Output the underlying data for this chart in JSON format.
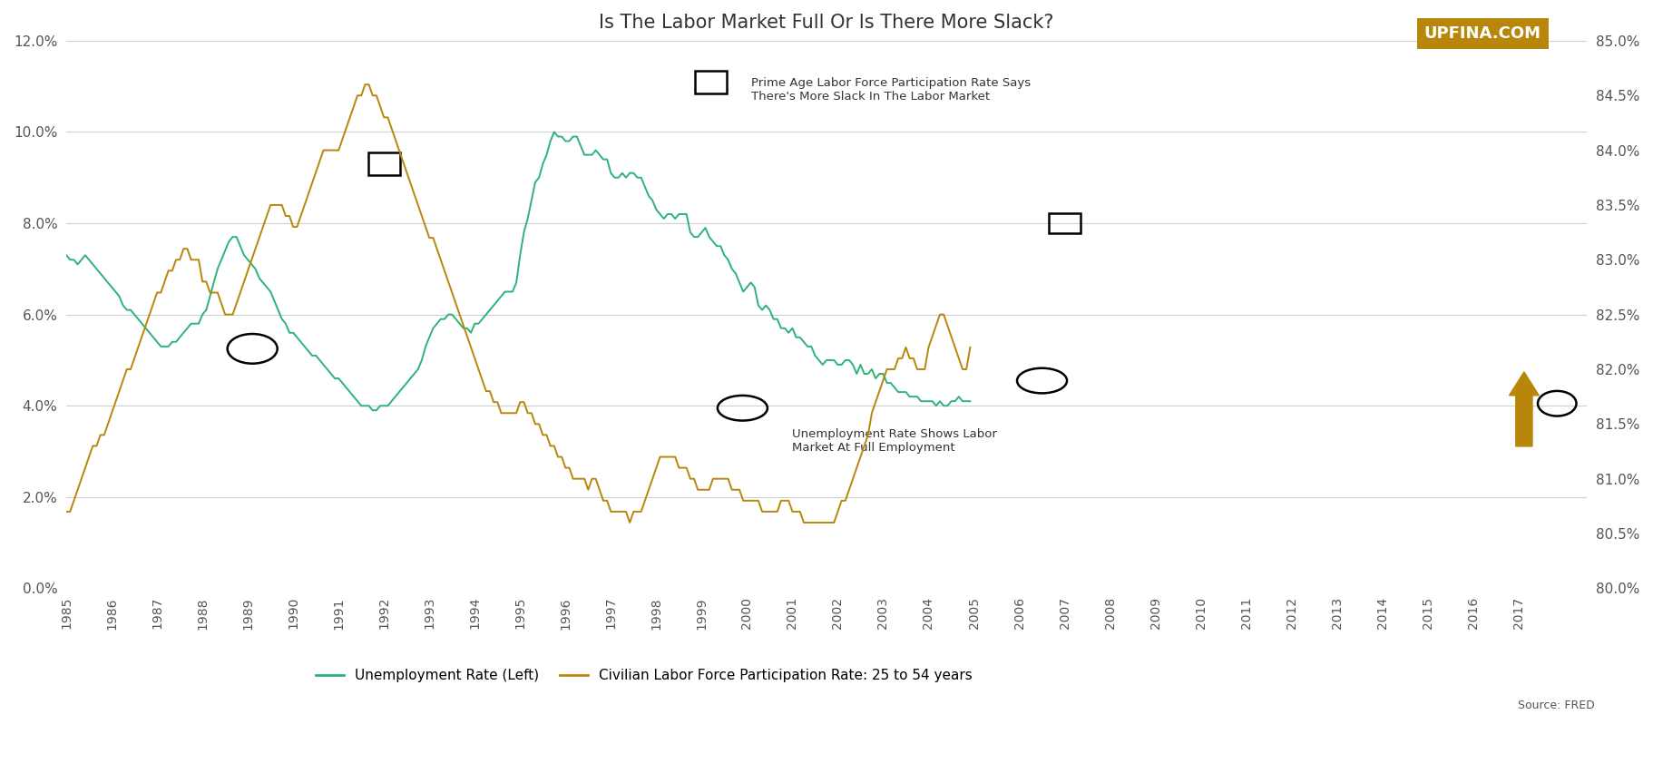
{
  "title": "Is The Labor Market Full Or Is There More Slack?",
  "watermark": "UPFINA.COM",
  "source_text": "Source: FRED",
  "legend_items": [
    {
      "label": "Unemployment Rate (Left)",
      "color": "#2db37a"
    },
    {
      "label": "Civilian Labor Force Participation Rate: 25 to 54 years",
      "color": "#b8860b"
    }
  ],
  "ylim_left": [
    0.0,
    12.0
  ],
  "ylim_right": [
    80.0,
    85.0
  ],
  "yticks_left": [
    0.0,
    2.0,
    4.0,
    6.0,
    8.0,
    10.0,
    12.0
  ],
  "yticks_right": [
    80.0,
    80.5,
    81.0,
    81.5,
    82.0,
    82.5,
    83.0,
    83.5,
    84.0,
    84.5,
    85.0
  ],
  "annotation1_text": "Prime Age Labor Force Participation Rate Says\nThere's More Slack In The Labor Market",
  "annotation2_text": "Unemployment Rate Shows Labor\nMarket At Full Employment",
  "unemployment_color": "#2db37a",
  "participation_color": "#b8860b",
  "background_color": "#ffffff",
  "grid_color": "#d0d0d0",
  "arrow_color": "#b8860b",
  "watermark_bg": "#b8860b",
  "watermark_text_color": "#ffffff",
  "x_start_year": 1985,
  "xtick_years": [
    1985,
    1986,
    1987,
    1988,
    1989,
    1990,
    1991,
    1992,
    1993,
    1994,
    1995,
    1996,
    1997,
    1998,
    1999,
    2000,
    2001,
    2002,
    2003,
    2004,
    2005,
    2006,
    2007,
    2008,
    2009,
    2010,
    2011,
    2012,
    2013,
    2014,
    2015,
    2016,
    2017
  ],
  "unemployment_data": [
    7.3,
    7.2,
    7.2,
    7.1,
    7.2,
    7.3,
    7.2,
    7.1,
    7.0,
    6.9,
    6.8,
    6.7,
    6.6,
    6.5,
    6.4,
    6.2,
    6.1,
    6.1,
    6.0,
    5.9,
    5.8,
    5.7,
    5.6,
    5.5,
    5.4,
    5.3,
    5.3,
    5.3,
    5.4,
    5.4,
    5.5,
    5.6,
    5.7,
    5.8,
    5.8,
    5.8,
    6.0,
    6.1,
    6.4,
    6.7,
    7.0,
    7.2,
    7.4,
    7.6,
    7.7,
    7.7,
    7.5,
    7.3,
    7.2,
    7.1,
    7.0,
    6.8,
    6.7,
    6.6,
    6.5,
    6.3,
    6.1,
    5.9,
    5.8,
    5.6,
    5.6,
    5.5,
    5.4,
    5.3,
    5.2,
    5.1,
    5.1,
    5.0,
    4.9,
    4.8,
    4.7,
    4.6,
    4.6,
    4.5,
    4.4,
    4.3,
    4.2,
    4.1,
    4.0,
    4.0,
    4.0,
    3.9,
    3.9,
    4.0,
    4.0,
    4.0,
    4.1,
    4.2,
    4.3,
    4.4,
    4.5,
    4.6,
    4.7,
    4.8,
    5.0,
    5.3,
    5.5,
    5.7,
    5.8,
    5.9,
    5.9,
    6.0,
    6.0,
    5.9,
    5.8,
    5.7,
    5.7,
    5.6,
    5.8,
    5.8,
    5.9,
    6.0,
    6.1,
    6.2,
    6.3,
    6.4,
    6.5,
    6.5,
    6.5,
    6.7,
    7.3,
    7.8,
    8.1,
    8.5,
    8.9,
    9.0,
    9.3,
    9.5,
    9.8,
    10.0,
    9.9,
    9.9,
    9.8,
    9.8,
    9.9,
    9.9,
    9.7,
    9.5,
    9.5,
    9.5,
    9.6,
    9.5,
    9.4,
    9.4,
    9.1,
    9.0,
    9.0,
    9.1,
    9.0,
    9.1,
    9.1,
    9.0,
    9.0,
    8.8,
    8.6,
    8.5,
    8.3,
    8.2,
    8.1,
    8.2,
    8.2,
    8.1,
    8.2,
    8.2,
    8.2,
    7.8,
    7.7,
    7.7,
    7.8,
    7.9,
    7.7,
    7.6,
    7.5,
    7.5,
    7.3,
    7.2,
    7.0,
    6.9,
    6.7,
    6.5,
    6.6,
    6.7,
    6.6,
    6.2,
    6.1,
    6.2,
    6.1,
    5.9,
    5.9,
    5.7,
    5.7,
    5.6,
    5.7,
    5.5,
    5.5,
    5.4,
    5.3,
    5.3,
    5.1,
    5.0,
    4.9,
    5.0,
    5.0,
    5.0,
    4.9,
    4.9,
    5.0,
    5.0,
    4.9,
    4.7,
    4.9,
    4.7,
    4.7,
    4.8,
    4.6,
    4.7,
    4.7,
    4.5,
    4.5,
    4.4,
    4.3,
    4.3,
    4.3,
    4.2,
    4.2,
    4.2,
    4.1,
    4.1,
    4.1,
    4.1,
    4.0,
    4.1,
    4.0,
    4.0,
    4.1,
    4.1,
    4.2,
    4.1,
    4.1,
    4.1
  ],
  "participation_data": [
    80.7,
    80.7,
    80.8,
    80.9,
    81.0,
    81.1,
    81.2,
    81.3,
    81.3,
    81.4,
    81.4,
    81.5,
    81.6,
    81.7,
    81.8,
    81.9,
    82.0,
    82.0,
    82.1,
    82.2,
    82.3,
    82.4,
    82.5,
    82.6,
    82.7,
    82.7,
    82.8,
    82.9,
    82.9,
    83.0,
    83.0,
    83.1,
    83.1,
    83.0,
    83.0,
    83.0,
    82.8,
    82.8,
    82.7,
    82.7,
    82.7,
    82.6,
    82.5,
    82.5,
    82.5,
    82.6,
    82.7,
    82.8,
    82.9,
    83.0,
    83.1,
    83.2,
    83.3,
    83.4,
    83.5,
    83.5,
    83.5,
    83.5,
    83.4,
    83.4,
    83.3,
    83.3,
    83.4,
    83.5,
    83.6,
    83.7,
    83.8,
    83.9,
    84.0,
    84.0,
    84.0,
    84.0,
    84.0,
    84.1,
    84.2,
    84.3,
    84.4,
    84.5,
    84.5,
    84.6,
    84.6,
    84.5,
    84.5,
    84.4,
    84.3,
    84.3,
    84.2,
    84.1,
    84.0,
    83.9,
    83.8,
    83.7,
    83.6,
    83.5,
    83.4,
    83.3,
    83.2,
    83.2,
    83.1,
    83.0,
    82.9,
    82.8,
    82.7,
    82.6,
    82.5,
    82.4,
    82.3,
    82.2,
    82.1,
    82.0,
    81.9,
    81.8,
    81.8,
    81.7,
    81.7,
    81.6,
    81.6,
    81.6,
    81.6,
    81.6,
    81.7,
    81.7,
    81.6,
    81.6,
    81.5,
    81.5,
    81.4,
    81.4,
    81.3,
    81.3,
    81.2,
    81.2,
    81.1,
    81.1,
    81.0,
    81.0,
    81.0,
    81.0,
    80.9,
    81.0,
    81.0,
    80.9,
    80.8,
    80.8,
    80.7,
    80.7,
    80.7,
    80.7,
    80.7,
    80.6,
    80.7,
    80.7,
    80.7,
    80.8,
    80.9,
    81.0,
    81.1,
    81.2,
    81.2,
    81.2,
    81.2,
    81.2,
    81.1,
    81.1,
    81.1,
    81.0,
    81.0,
    80.9,
    80.9,
    80.9,
    80.9,
    81.0,
    81.0,
    81.0,
    81.0,
    81.0,
    80.9,
    80.9,
    80.9,
    80.8,
    80.8,
    80.8,
    80.8,
    80.8,
    80.7,
    80.7,
    80.7,
    80.7,
    80.7,
    80.8,
    80.8,
    80.8,
    80.7,
    80.7,
    80.7,
    80.6,
    80.6,
    80.6,
    80.6,
    80.6,
    80.6,
    80.6,
    80.6,
    80.6,
    80.7,
    80.8,
    80.8,
    80.9,
    81.0,
    81.1,
    81.2,
    81.3,
    81.4,
    81.6,
    81.7,
    81.8,
    81.9,
    82.0,
    82.0,
    82.0,
    82.1,
    82.1,
    82.2,
    82.1,
    82.1,
    82.0,
    82.0,
    82.0,
    82.2,
    82.3,
    82.4,
    82.5,
    82.5,
    82.4,
    82.3,
    82.2,
    82.1,
    82.0,
    82.0,
    82.2
  ]
}
